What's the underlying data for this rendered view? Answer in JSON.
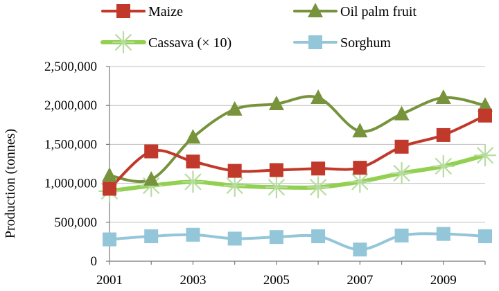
{
  "chart_data": {
    "type": "line",
    "title": "",
    "xlabel": "",
    "ylabel": "Production (tonnes)",
    "ylim": [
      0,
      2500000
    ],
    "yticks": [
      0,
      500000,
      1000000,
      1500000,
      2000000,
      2500000
    ],
    "ytick_labels": [
      "0",
      "500,000",
      "1,000,000",
      "1,500,000",
      "2,000,000",
      "2,500,000"
    ],
    "xlim": [
      2001,
      2010
    ],
    "xticks": [
      2001,
      2003,
      2005,
      2007,
      2009
    ],
    "xtick_labels": [
      "2001",
      "2003",
      "2005",
      "2007",
      "2009"
    ],
    "grid": true,
    "legend_position": "top",
    "x": [
      2001,
      2002,
      2003,
      2004,
      2005,
      2006,
      2007,
      2008,
      2009,
      2010
    ],
    "series": [
      {
        "name": "Maize",
        "color": "#c0392b",
        "marker": "square",
        "values": [
          930000,
          1410000,
          1280000,
          1160000,
          1170000,
          1190000,
          1200000,
          1470000,
          1620000,
          1870000
        ]
      },
      {
        "name": "Oil palm fruit",
        "color": "#77933c",
        "marker": "triangle",
        "values": [
          1100000,
          1050000,
          1590000,
          1950000,
          2020000,
          2100000,
          1670000,
          1890000,
          2100000,
          2000000
        ]
      },
      {
        "name": "Cassava (× 10)",
        "color": "#92d050",
        "marker": "asterisk",
        "values": [
          900000,
          970000,
          1020000,
          970000,
          950000,
          950000,
          1020000,
          1130000,
          1220000,
          1360000
        ]
      },
      {
        "name": "Sorghum",
        "color": "#93c6d8",
        "marker": "square",
        "values": [
          280000,
          320000,
          340000,
          290000,
          310000,
          320000,
          150000,
          330000,
          350000,
          320000
        ]
      }
    ]
  }
}
